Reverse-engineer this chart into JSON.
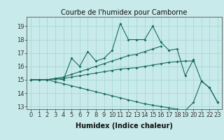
{
  "title": "Courbe de l'humidex pour Camborne",
  "xlabel": "Humidex (Indice chaleur)",
  "background_color": "#c8eaea",
  "grid_color": "#a8d8d8",
  "line_color": "#1a6b60",
  "x_values": [
    0,
    1,
    2,
    3,
    4,
    5,
    6,
    7,
    8,
    9,
    10,
    11,
    12,
    13,
    14,
    15,
    16,
    17,
    18,
    19,
    20,
    21,
    22,
    23
  ],
  "series1": [
    15.0,
    15.0,
    15.0,
    15.1,
    15.0,
    16.6,
    16.0,
    17.1,
    16.4,
    16.6,
    17.2,
    19.2,
    18.0,
    18.0,
    18.0,
    19.0,
    17.8,
    17.2,
    17.3,
    15.3,
    16.5,
    14.9,
    14.4,
    13.3
  ],
  "series2": [
    15.0,
    15.0,
    15.0,
    15.1,
    15.2,
    15.4,
    15.6,
    15.8,
    16.0,
    16.2,
    16.4,
    16.6,
    16.8,
    16.9,
    17.1,
    17.3,
    17.5,
    null,
    null,
    null,
    null,
    null,
    null,
    null
  ],
  "series3": [
    15.0,
    15.0,
    15.0,
    15.05,
    15.1,
    15.2,
    15.3,
    15.4,
    15.5,
    15.6,
    15.7,
    15.8,
    15.85,
    15.9,
    16.0,
    16.1,
    16.2,
    16.3,
    16.35,
    16.4,
    16.4,
    null,
    null,
    null
  ],
  "series4": [
    15.0,
    15.0,
    15.0,
    14.85,
    14.7,
    14.55,
    14.4,
    14.25,
    14.1,
    13.95,
    13.8,
    13.65,
    13.5,
    13.35,
    13.2,
    13.1,
    13.0,
    12.9,
    12.8,
    12.7,
    13.3,
    14.9,
    14.4,
    13.3
  ],
  "ylim": [
    12.8,
    19.7
  ],
  "yticks": [
    13,
    14,
    15,
    16,
    17,
    18,
    19
  ],
  "xlim": [
    -0.5,
    23.5
  ],
  "axis_fontsize": 7,
  "tick_fontsize": 6
}
